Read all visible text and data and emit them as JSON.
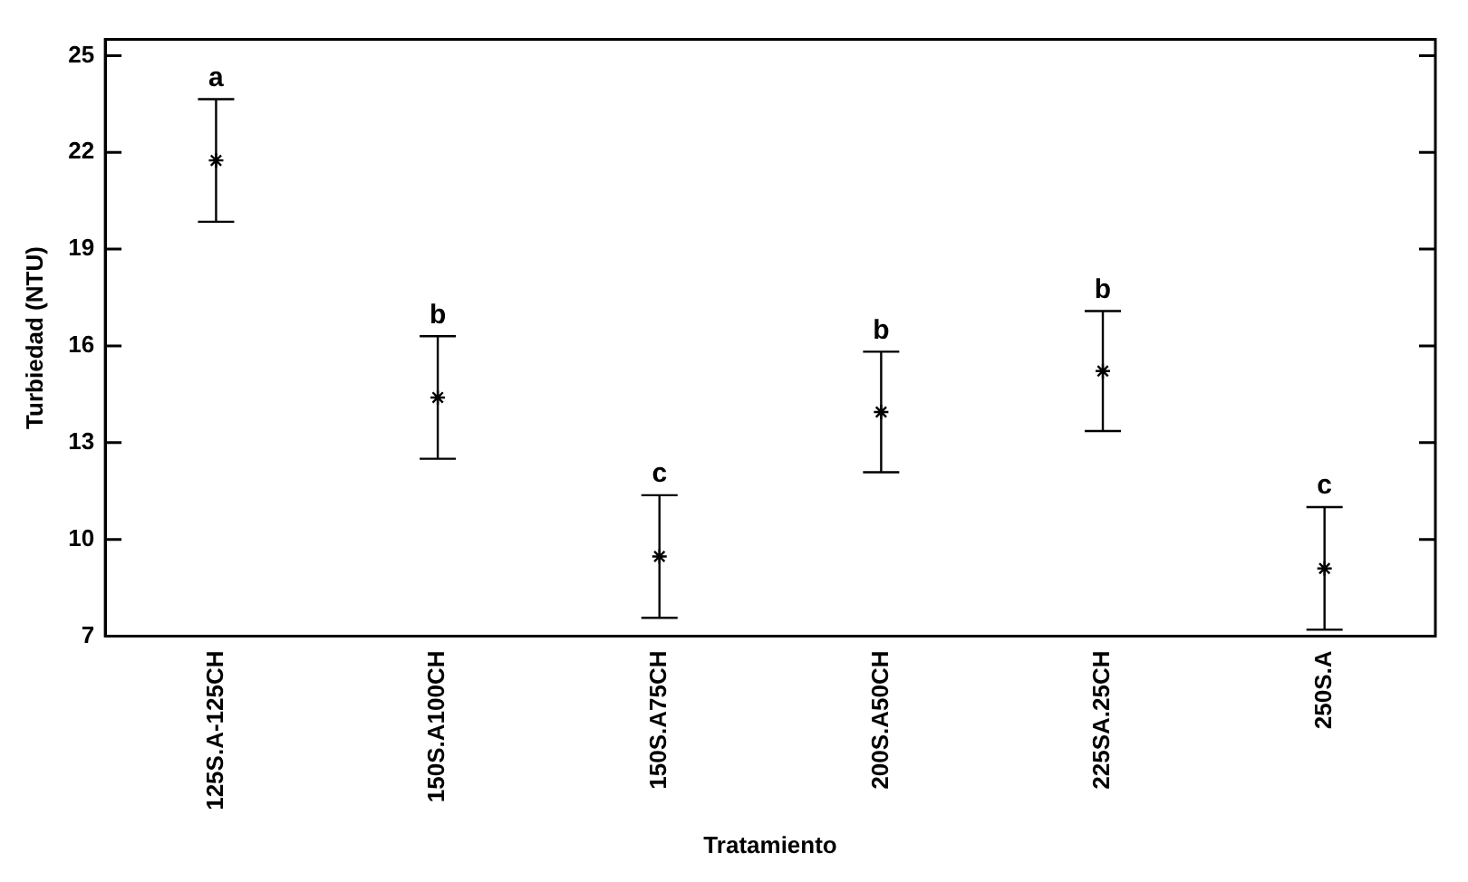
{
  "chart_data": {
    "type": "scatter",
    "xlabel": "Tratamiento",
    "ylabel": "Turbiedad (NTU)",
    "categories": [
      "125S.A-125CH",
      "150S.A100CH",
      "150S.A75CH",
      "200S.A50CH",
      "225SA.25CH",
      "250S.A"
    ],
    "series": [
      {
        "color": "#000000",
        "values": [
          21.75,
          14.4,
          9.47,
          13.95,
          15.22,
          9.1
        ],
        "errors": [
          1.9,
          1.9,
          1.9,
          1.87,
          1.86,
          1.9
        ]
      }
    ],
    "ylim": [
      7,
      25.5
    ],
    "yticks": [
      7,
      10,
      13,
      16,
      19,
      22,
      25
    ],
    "grid": false,
    "legend": false,
    "marker": "cross",
    "annotations": [
      {
        "text": "a",
        "x": "125S.A-125CH",
        "y": 23.65
      },
      {
        "text": "b",
        "x": "150S.A100CH",
        "y": 16.3
      },
      {
        "text": "c",
        "x": "150S.A75CH",
        "y": 11.37
      },
      {
        "text": "b",
        "x": "200S.A50CH",
        "y": 15.82
      },
      {
        "text": "b",
        "x": "225SA.25CH",
        "y": 17.08
      },
      {
        "text": "c",
        "x": "250S.A",
        "y": 11.0
      }
    ]
  }
}
